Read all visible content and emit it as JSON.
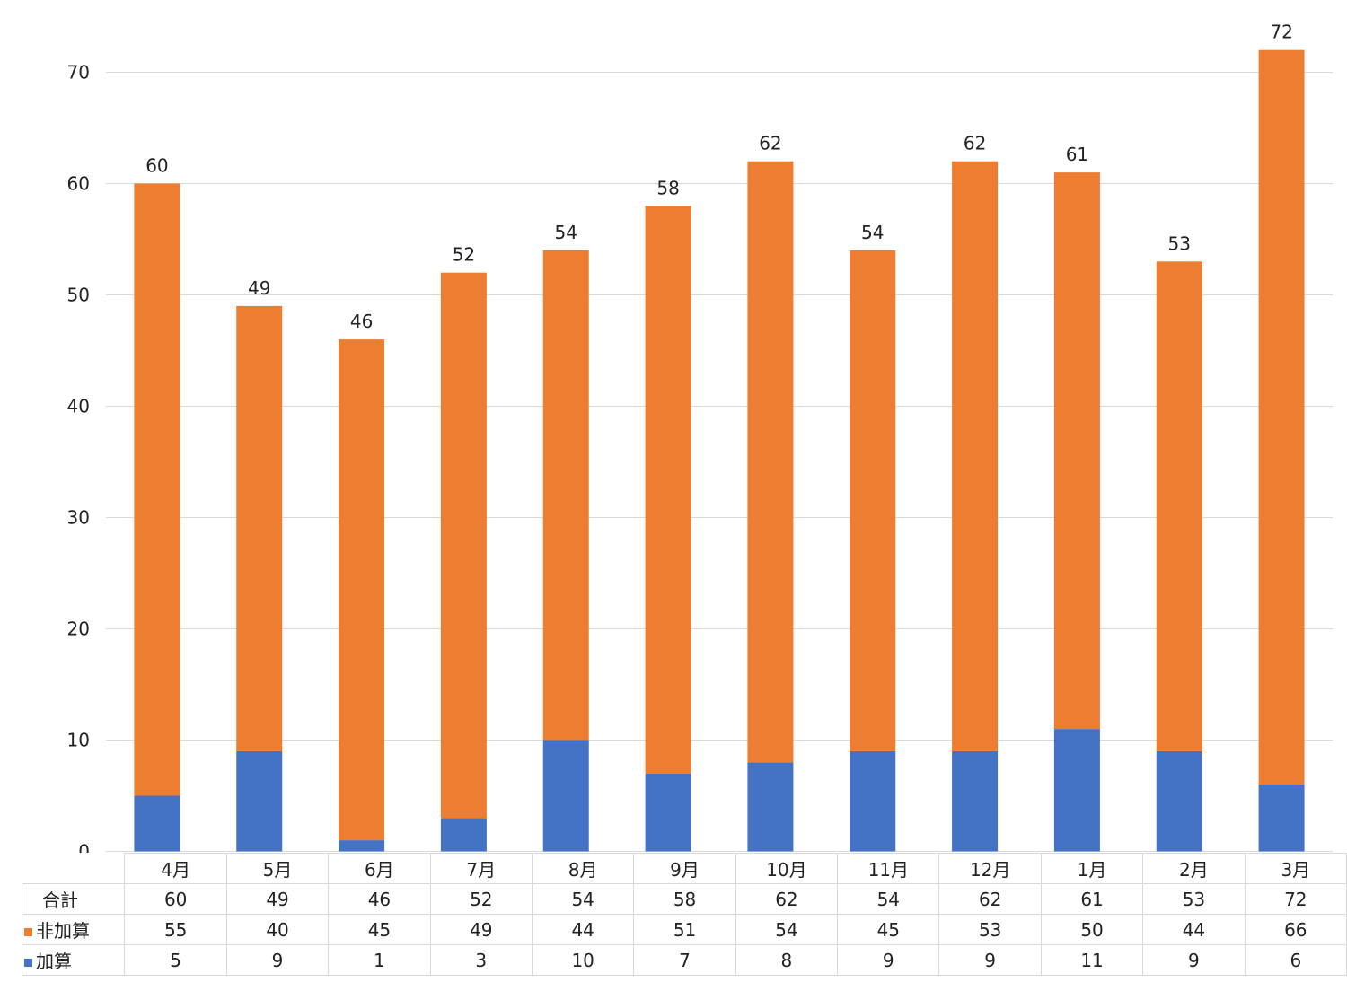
{
  "chart_data": {
    "type": "bar",
    "stacked": true,
    "categories": [
      "4月",
      "5月",
      "6月",
      "7月",
      "8月",
      "9月",
      "10月",
      "11月",
      "12月",
      "1月",
      "2月",
      "3月"
    ],
    "series": [
      {
        "name": "加算",
        "color": "#4472c4",
        "values": [
          5,
          9,
          1,
          3,
          10,
          7,
          8,
          9,
          9,
          11,
          9,
          6
        ]
      },
      {
        "name": "非加算",
        "color": "#ed7d31",
        "values": [
          55,
          40,
          45,
          49,
          44,
          51,
          54,
          45,
          53,
          50,
          44,
          66
        ]
      }
    ],
    "totals_label": "合計",
    "totals": [
      60,
      49,
      46,
      52,
      54,
      58,
      62,
      54,
      62,
      61,
      53,
      72
    ],
    "ylim": [
      0,
      70
    ],
    "yticks": [
      0,
      10,
      20,
      30,
      40,
      50,
      60,
      70
    ],
    "grid": true,
    "legend": "data-table"
  }
}
